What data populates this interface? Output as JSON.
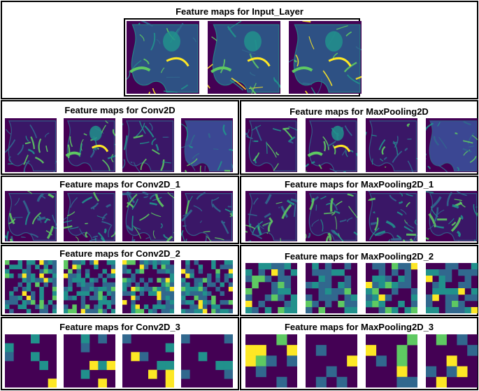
{
  "colors": {
    "viridis_dark": "#440154",
    "viridis_blue": "#31688e",
    "viridis_teal": "#21918c",
    "viridis_green": "#5ec962",
    "viridis_yellow": "#fde725",
    "border": "#000000"
  },
  "input_panel": {
    "title": "Feature maps for Input_Layer",
    "tile_count": 3,
    "tile_kind": "mri"
  },
  "layers": [
    {
      "id": "conv2d",
      "title": "Feature maps for Conv2D",
      "tile_count": 4,
      "tile_kind": "fine"
    },
    {
      "id": "maxpool",
      "title": "Feature maps for MaxPooling2D",
      "tile_count": 4,
      "tile_kind": "fine"
    },
    {
      "id": "conv2d_1",
      "title": "Feature maps for Conv2D_1",
      "tile_count": 4,
      "tile_kind": "medium"
    },
    {
      "id": "maxpool_1",
      "title": "Feature maps for MaxPooling2D_1",
      "tile_count": 4,
      "tile_kind": "medium"
    },
    {
      "id": "conv2d_2",
      "title": "Feature maps for Conv2D_2",
      "tile_count": 4,
      "tile_kind": "grid12"
    },
    {
      "id": "maxpool_2",
      "title": "Feature maps for MaxPooling2D_2",
      "tile_count": 4,
      "tile_kind": "grid8"
    },
    {
      "id": "conv2d_3",
      "title": "Feature maps for Conv2D_3",
      "tile_count": 4,
      "tile_kind": "grid6"
    },
    {
      "id": "maxpool_3",
      "title": "Feature maps for MaxPooling2D_3",
      "tile_count": 4,
      "tile_kind": "grid5"
    }
  ]
}
